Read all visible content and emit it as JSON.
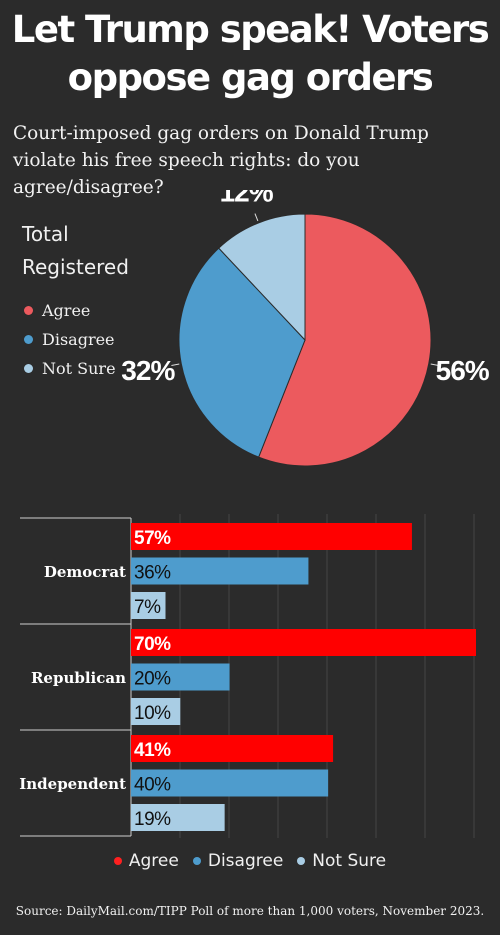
{
  "title_line1": "Let Trump speak! Voters",
  "title_line2": "oppose gag orders",
  "subtitle": "Court-imposed gag orders on Donald Trump violate his free speech rights: do you agree/disagree?",
  "source": "Source: DailyMail.com/TIPP Poll of more than 1,000 voters, November 2023.",
  "colors": {
    "background": "#2b2b2b",
    "pie_agree": "#ec5a5e",
    "pie_disagree": "#4e9ccd",
    "pie_not_sure": "#a9cde4",
    "bar_agree": "#ff0000",
    "bar_disagree": "#4e9ccd",
    "bar_not_sure": "#a9cde4",
    "bottom_dot_agree": "#ff2020"
  },
  "chart_data": [
    {
      "type": "pie",
      "title": "",
      "legend_heading_line1": "Total",
      "legend_heading_line2": "Registered",
      "legend_position": "left",
      "slices": [
        {
          "name": "Agree",
          "value": 56,
          "label": "56%",
          "color": "#ec5a5e"
        },
        {
          "name": "Disagree",
          "value": 32,
          "label": "32%",
          "color": "#4e9ccd"
        },
        {
          "name": "Not Sure",
          "value": 12,
          "label": "12%",
          "color": "#a9cde4"
        }
      ]
    },
    {
      "type": "bar",
      "orientation": "horizontal",
      "categories": [
        "Democrat",
        "Republican",
        "Independent"
      ],
      "series": [
        {
          "name": "Agree",
          "values": [
            57,
            70,
            41
          ],
          "labels": [
            "57%",
            "70%",
            "41%"
          ],
          "color": "#ff0000"
        },
        {
          "name": "Disagree",
          "values": [
            36,
            20,
            40
          ],
          "labels": [
            "36%",
            "20%",
            "40%"
          ],
          "color": "#4e9ccd"
        },
        {
          "name": "Not Sure",
          "values": [
            7,
            10,
            19
          ],
          "labels": [
            "7%",
            "10%",
            "19%"
          ],
          "color": "#a9cde4"
        }
      ],
      "xlim": [
        0,
        70
      ],
      "grid": true,
      "legend_position": "bottom",
      "xlabel": "",
      "ylabel": ""
    }
  ]
}
